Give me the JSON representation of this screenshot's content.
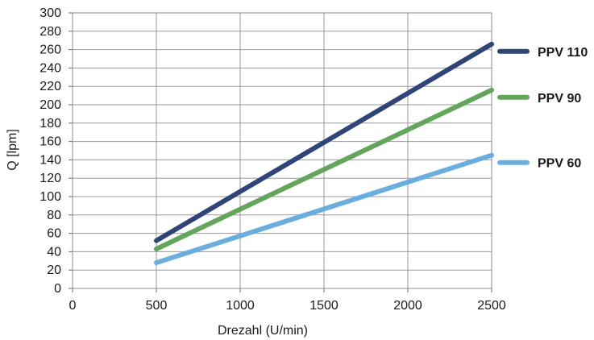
{
  "chart_data": {
    "type": "line",
    "title": "",
    "xlabel": "Drezahl (U/min)",
    "ylabel": "Q [lpm]",
    "xlim": [
      0,
      2500
    ],
    "ylim": [
      0,
      300
    ],
    "x_ticks": [
      "0",
      "500",
      "1000",
      "1500",
      "2000",
      "2500"
    ],
    "y_ticks": [
      "0",
      "20",
      "40",
      "60",
      "80",
      "100",
      "120",
      "140",
      "160",
      "180",
      "200",
      "220",
      "240",
      "260",
      "280",
      "300"
    ],
    "grid": true,
    "legend_position": "right",
    "series": [
      {
        "name": "PPV 110",
        "color": "#2f4577",
        "x": [
          500,
          2500
        ],
        "y": [
          52,
          266
        ]
      },
      {
        "name": "PPV 90",
        "color": "#62a55b",
        "x": [
          500,
          2500
        ],
        "y": [
          43,
          216
        ]
      },
      {
        "name": "PPV 60",
        "color": "#6aaee0",
        "x": [
          500,
          2500
        ],
        "y": [
          28,
          145
        ]
      }
    ]
  }
}
